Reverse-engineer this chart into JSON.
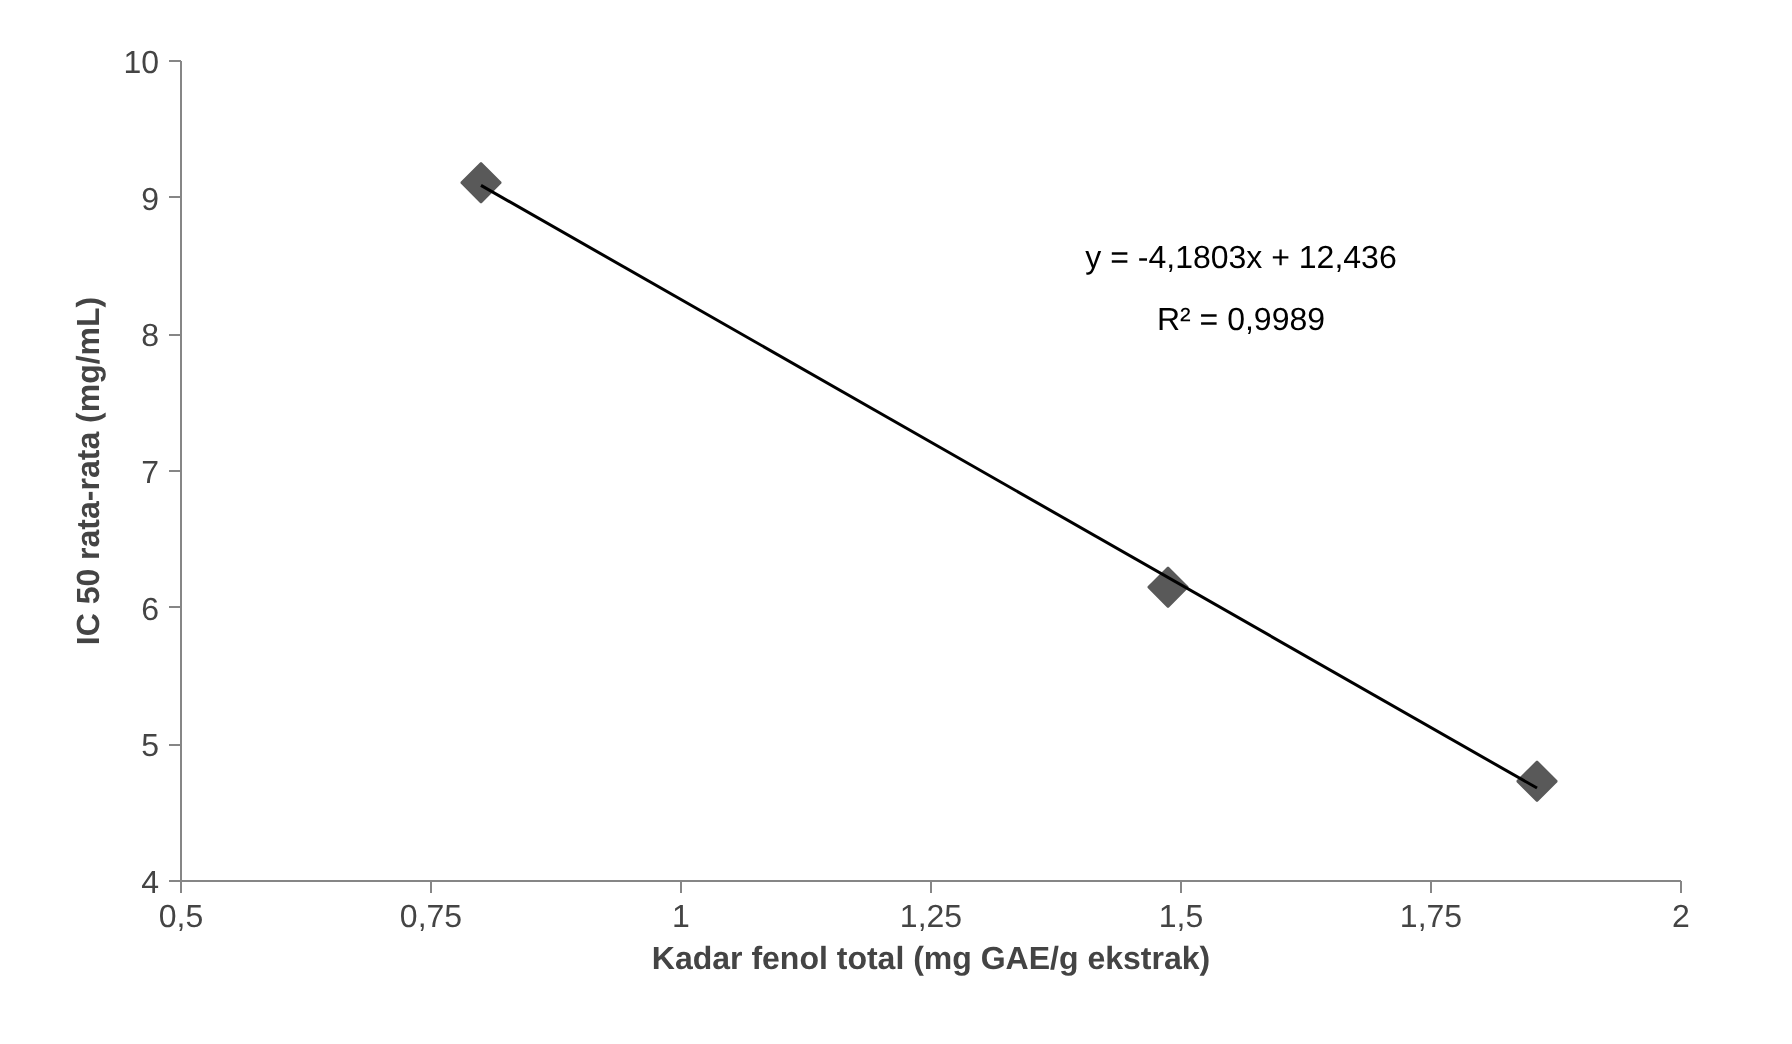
{
  "chart_data": {
    "type": "scatter",
    "xlabel": "Kadar fenol total (mg GAE/g ekstrak)",
    "ylabel": "IC 50 rata-rata (mg/mL)",
    "annotations": [
      "y = -4,1803x + 12,436",
      "R² = 0,9989"
    ],
    "x": [
      0.8,
      1.487,
      1.856
    ],
    "series": [
      {
        "color": "#595959",
        "values": [
          9.11,
          6.15,
          4.73
        ],
        "marker": "diamond"
      },
      {
        "type": "line",
        "color": "#000000",
        "x": [
          0.8,
          1.856
        ],
        "values": [
          9.09,
          4.68
        ],
        "marker": "none"
      }
    ],
    "xlim": [
      0.5,
      2
    ],
    "ylim": [
      4,
      10
    ],
    "xticks": [
      {
        "value": 0.5,
        "label": "0,5"
      },
      {
        "value": 0.75,
        "label": "0,75"
      },
      1,
      {
        "value": 1.25,
        "label": "1,25"
      },
      {
        "value": 1.5,
        "label": "1,5"
      },
      {
        "value": 1.75,
        "label": "1,75"
      },
      2
    ],
    "yticks": [
      4,
      5,
      6,
      7,
      8,
      9,
      10
    ],
    "grid": false
  }
}
